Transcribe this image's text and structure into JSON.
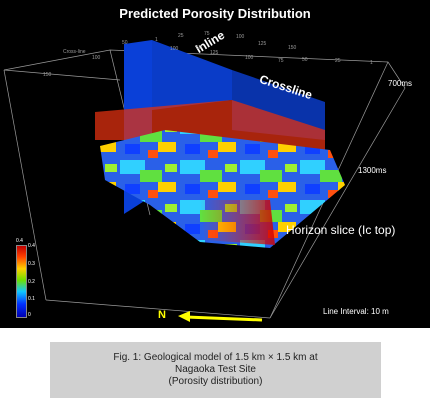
{
  "figure": {
    "title": "Predicted Porosity Distribution",
    "inline_label": "Inline",
    "crossline_label": "Crossline",
    "depth_top": "700ms",
    "depth_bottom": "1300ms",
    "horizon_label": "Horizon slice (Ic top)",
    "north_label": "N",
    "line_interval": "Line Interval: 10 m",
    "ticks": [
      "Cross-line",
      "150",
      "100",
      "50",
      "1",
      "25",
      "75",
      "100",
      "125",
      "150",
      "125",
      "100",
      "75",
      "50",
      "25",
      "1",
      "100",
      "50"
    ],
    "colorbar": {
      "labels": [
        "0.4",
        "0.4",
        "0.3",
        "0.2",
        "0.1",
        "0"
      ],
      "colors": {
        "high": "#c00000",
        "mid": "#6fe000",
        "low": "#0000b0"
      }
    },
    "north_arrow_color": "#ffff00"
  },
  "caption": {
    "line1": "Fig. 1: Geological model of 1.5 km × 1.5 km at",
    "line2": "Nagaoka Test Site",
    "line3": "(Porosity distribution)"
  }
}
